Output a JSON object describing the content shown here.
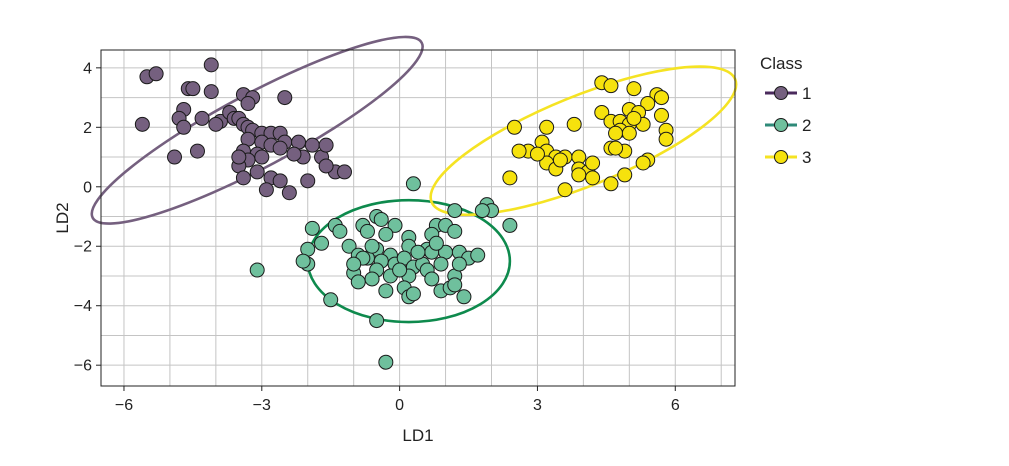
{
  "chart_data": {
    "type": "scatter",
    "title": "",
    "xlabel": "LD1",
    "ylabel": "LD2",
    "xlim": [
      -6.5,
      7.3
    ],
    "ylim": [
      -6.7,
      4.6
    ],
    "xticks": [
      -6,
      -3,
      0,
      3,
      6
    ],
    "yticks": [
      -6,
      -4,
      -2,
      0,
      2,
      4
    ],
    "xtick_labels": [
      "−6",
      "−3",
      "0",
      "3",
      "6"
    ],
    "ytick_labels": [
      "−6",
      "−4",
      "−2",
      "0",
      "2",
      "4"
    ],
    "grid": true,
    "legend": {
      "title": "Class",
      "placement": "right"
    },
    "series": [
      {
        "name": "1",
        "color": "#75607f",
        "ellipse_color": "#75607f",
        "ellipse": {
          "cx": -3.1,
          "cy": 1.9,
          "rx": 4.15,
          "ry": 1.0,
          "angle_deg": -28
        },
        "points": [
          [
            -5.5,
            3.7
          ],
          [
            -5.3,
            3.8
          ],
          [
            -4.1,
            4.1
          ],
          [
            -4.6,
            3.3
          ],
          [
            -4.5,
            3.3
          ],
          [
            -4.1,
            3.2
          ],
          [
            -3.4,
            3.1
          ],
          [
            -3.2,
            3.0
          ],
          [
            -3.3,
            2.8
          ],
          [
            -2.5,
            3.0
          ],
          [
            -4.7,
            2.6
          ],
          [
            -4.3,
            2.3
          ],
          [
            -4.8,
            2.3
          ],
          [
            -3.9,
            2.2
          ],
          [
            -3.7,
            2.5
          ],
          [
            -3.6,
            2.3
          ],
          [
            -3.5,
            2.3
          ],
          [
            -4.0,
            2.1
          ],
          [
            -4.7,
            2.0
          ],
          [
            -5.6,
            2.1
          ],
          [
            -3.4,
            2.1
          ],
          [
            -3.3,
            2.0
          ],
          [
            -3.2,
            1.9
          ],
          [
            -3.0,
            1.8
          ],
          [
            -2.8,
            1.8
          ],
          [
            -2.6,
            1.8
          ],
          [
            -3.3,
            1.6
          ],
          [
            -3.0,
            1.5
          ],
          [
            -2.8,
            1.4
          ],
          [
            -2.5,
            1.5
          ],
          [
            -2.2,
            1.5
          ],
          [
            -1.9,
            1.4
          ],
          [
            -2.6,
            1.3
          ],
          [
            -3.4,
            1.2
          ],
          [
            -3.1,
            1.1
          ],
          [
            -3.3,
            0.9
          ],
          [
            -3.5,
            0.7
          ],
          [
            -3.1,
            0.5
          ],
          [
            -2.8,
            0.3
          ],
          [
            -2.6,
            0.2
          ],
          [
            -3.4,
            0.3
          ],
          [
            -4.4,
            1.2
          ],
          [
            -4.9,
            1.0
          ],
          [
            -2.1,
            1.0
          ],
          [
            -1.7,
            1.0
          ],
          [
            -2.0,
            0.2
          ],
          [
            -1.4,
            0.5
          ],
          [
            -1.2,
            0.5
          ],
          [
            -1.6,
            1.4
          ],
          [
            -2.9,
            -0.1
          ],
          [
            -2.4,
            -0.2
          ],
          [
            -3.5,
            1.0
          ],
          [
            -2.3,
            1.1
          ],
          [
            -1.6,
            0.7
          ],
          [
            -3.0,
            1.0
          ]
        ]
      },
      {
        "name": "2",
        "color": "#6fc09d",
        "ellipse_color": "#0e8a4d",
        "ellipse": {
          "cx": 0.2,
          "cy": -2.5,
          "rx": 2.2,
          "ry": 2.05,
          "angle_deg": 0
        },
        "points": [
          [
            0.3,
            0.1
          ],
          [
            -0.5,
            -1.0
          ],
          [
            1.2,
            -0.8
          ],
          [
            1.9,
            -0.6
          ],
          [
            2.0,
            -0.8
          ],
          [
            1.8,
            -0.8
          ],
          [
            2.4,
            -1.3
          ],
          [
            -1.4,
            -1.3
          ],
          [
            -0.8,
            -1.3
          ],
          [
            -0.4,
            -1.1
          ],
          [
            -0.1,
            -1.3
          ],
          [
            0.8,
            -1.3
          ],
          [
            1.0,
            -1.3
          ],
          [
            -1.3,
            -1.5
          ],
          [
            -0.7,
            -1.5
          ],
          [
            -0.3,
            -1.6
          ],
          [
            -1.9,
            -1.4
          ],
          [
            0.2,
            -1.7
          ],
          [
            0.7,
            -1.6
          ],
          [
            1.2,
            -1.5
          ],
          [
            -1.7,
            -1.9
          ],
          [
            -2.0,
            -2.1
          ],
          [
            -1.1,
            -2.0
          ],
          [
            -0.5,
            -2.1
          ],
          [
            -0.2,
            -2.3
          ],
          [
            0.2,
            -2.0
          ],
          [
            0.6,
            -2.1
          ],
          [
            0.7,
            -2.2
          ],
          [
            1.0,
            -2.2
          ],
          [
            1.3,
            -2.2
          ],
          [
            -2.0,
            -2.6
          ],
          [
            -2.1,
            -2.5
          ],
          [
            -0.9,
            -2.3
          ],
          [
            -0.7,
            -2.4
          ],
          [
            -0.4,
            -2.5
          ],
          [
            -0.1,
            -2.6
          ],
          [
            0.1,
            -2.4
          ],
          [
            0.3,
            -2.7
          ],
          [
            0.5,
            -2.6
          ],
          [
            0.9,
            -2.6
          ],
          [
            1.5,
            -2.4
          ],
          [
            1.7,
            -2.3
          ],
          [
            -3.1,
            -2.8
          ],
          [
            -1.0,
            -2.9
          ],
          [
            -0.5,
            -2.8
          ],
          [
            -0.2,
            -3.0
          ],
          [
            0.2,
            -3.0
          ],
          [
            0.6,
            -2.8
          ],
          [
            0.7,
            -3.1
          ],
          [
            1.2,
            -3.0
          ],
          [
            -0.9,
            -3.2
          ],
          [
            -0.6,
            -3.1
          ],
          [
            -0.3,
            -3.5
          ],
          [
            0.1,
            -3.4
          ],
          [
            0.2,
            -3.7
          ],
          [
            0.9,
            -3.5
          ],
          [
            1.1,
            -3.4
          ],
          [
            1.2,
            -3.3
          ],
          [
            1.4,
            -3.7
          ],
          [
            0.3,
            -3.6
          ],
          [
            -1.5,
            -3.8
          ],
          [
            -0.5,
            -4.5
          ],
          [
            -0.3,
            -5.9
          ],
          [
            -0.8,
            -2.4
          ],
          [
            0.0,
            -2.8
          ],
          [
            -1.0,
            -2.6
          ],
          [
            0.4,
            -2.2
          ],
          [
            -0.6,
            -2.0
          ],
          [
            0.8,
            -1.9
          ],
          [
            1.3,
            -2.6
          ]
        ]
      },
      {
        "name": "3",
        "color": "#f6e20d",
        "ellipse_color": "#f5e323",
        "ellipse": {
          "cx": 4.0,
          "cy": 1.55,
          "rx": 3.55,
          "ry": 1.3,
          "angle_deg": -22
        },
        "points": [
          [
            4.4,
            3.5
          ],
          [
            4.6,
            3.4
          ],
          [
            5.1,
            3.3
          ],
          [
            5.6,
            3.1
          ],
          [
            5.7,
            3.0
          ],
          [
            5.4,
            2.8
          ],
          [
            5.0,
            2.6
          ],
          [
            5.2,
            2.5
          ],
          [
            4.4,
            2.5
          ],
          [
            4.6,
            2.2
          ],
          [
            4.8,
            2.2
          ],
          [
            5.0,
            2.1
          ],
          [
            5.3,
            2.1
          ],
          [
            5.7,
            2.4
          ],
          [
            4.8,
            1.9
          ],
          [
            4.7,
            1.8
          ],
          [
            5.0,
            1.8
          ],
          [
            5.8,
            1.9
          ],
          [
            5.8,
            1.6
          ],
          [
            3.8,
            2.1
          ],
          [
            3.2,
            2.0
          ],
          [
            2.5,
            2.0
          ],
          [
            3.1,
            1.5
          ],
          [
            3.2,
            1.2
          ],
          [
            2.8,
            1.2
          ],
          [
            2.6,
            1.2
          ],
          [
            3.4,
            1.0
          ],
          [
            3.6,
            1.0
          ],
          [
            3.9,
            1.0
          ],
          [
            3.2,
            0.8
          ],
          [
            3.4,
            0.6
          ],
          [
            3.9,
            0.6
          ],
          [
            4.1,
            0.5
          ],
          [
            3.9,
            0.4
          ],
          [
            4.2,
            0.3
          ],
          [
            3.6,
            -0.1
          ],
          [
            2.4,
            0.3
          ],
          [
            4.6,
            0.1
          ],
          [
            4.9,
            0.4
          ],
          [
            5.4,
            0.9
          ],
          [
            5.3,
            0.8
          ],
          [
            4.9,
            1.2
          ],
          [
            4.6,
            1.3
          ],
          [
            3.0,
            1.1
          ],
          [
            4.2,
            0.8
          ],
          [
            5.1,
            2.3
          ],
          [
            4.7,
            1.3
          ],
          [
            3.5,
            0.9
          ]
        ]
      }
    ]
  }
}
